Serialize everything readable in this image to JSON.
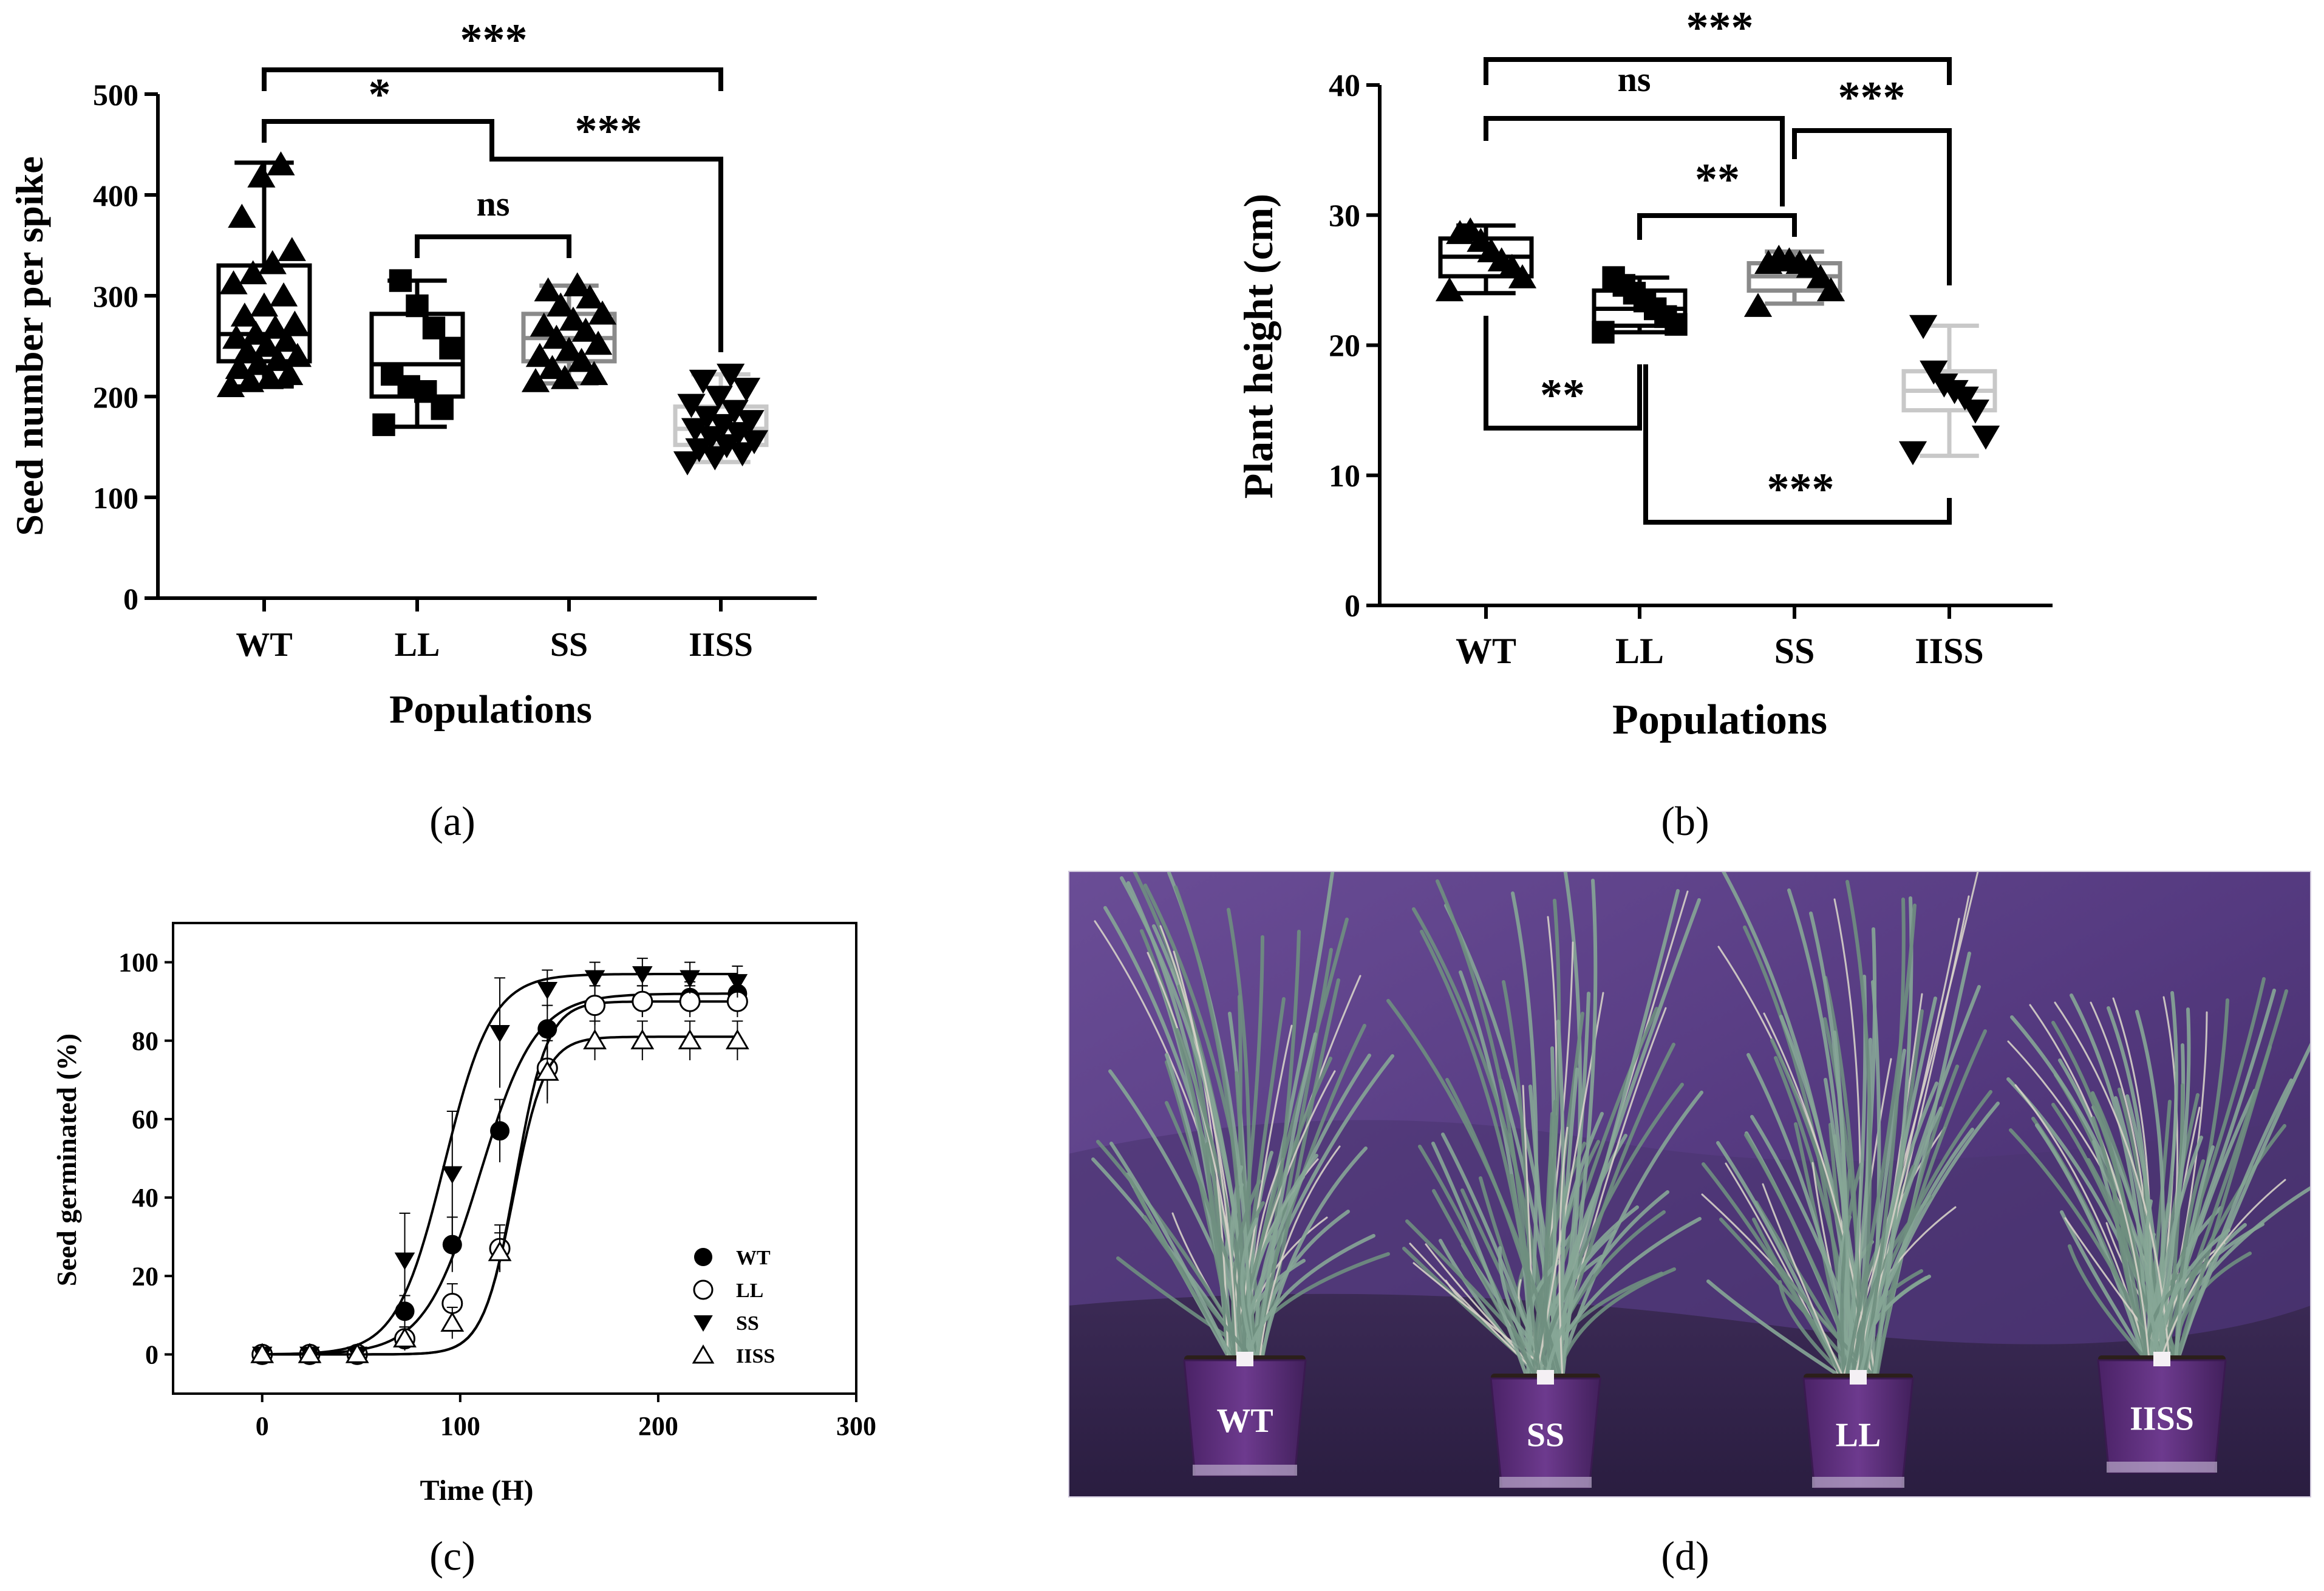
{
  "panels": {
    "a": {
      "caption": "(a)",
      "chart_data": {
        "type": "box",
        "title": "",
        "xlabel": "Populations",
        "ylabel": "Seed number per spike",
        "ylim": [
          0,
          500
        ],
        "yticks": [
          0,
          100,
          200,
          300,
          400,
          500
        ],
        "categories": [
          "WT",
          "LL",
          "SS",
          "IISS"
        ],
        "series": [
          {
            "name": "WT",
            "marker": "triangle-up",
            "box": {
              "min": 210,
              "q1": 235,
              "median": 262,
              "q3": 330,
              "max": 432
            },
            "points": [
              210,
              215,
              218,
              222,
              228,
              232,
              236,
              240,
              245,
              250,
              255,
              258,
              262,
              268,
              272,
              280,
              290,
              300,
              312,
              322,
              332,
              345,
              378,
              418,
              430
            ]
          },
          {
            "name": "LL",
            "marker": "square",
            "box": {
              "min": 170,
              "q1": 200,
              "median": 232,
              "q3": 282,
              "max": 315
            },
            "points": [
              172,
              188,
              205,
              210,
              222,
              248,
              268,
              290,
              315
            ]
          },
          {
            "name": "SS",
            "marker": "triangle-up",
            "box": {
              "min": 213,
              "q1": 235,
              "median": 258,
              "q3": 282,
              "max": 310
            },
            "points": [
              215,
              218,
              222,
              228,
              235,
              240,
              246,
              252,
              258,
              265,
              270,
              276,
              282,
              290,
              298,
              305,
              310
            ]
          },
          {
            "name": "IISS",
            "marker": "triangle-down",
            "box": {
              "min": 135,
              "q1": 152,
              "median": 168,
              "q3": 190,
              "max": 222
            },
            "points": [
              135,
              140,
              144,
              148,
              152,
              156,
              160,
              164,
              168,
              172,
              176,
              180,
              186,
              192,
              200,
              208,
              216,
              222
            ]
          }
        ],
        "comparisons": [
          {
            "from": "WT",
            "to": "IISS",
            "label": "***"
          },
          {
            "from": "WT",
            "to": "SS",
            "label": "*"
          },
          {
            "from": "LL",
            "to": "SS",
            "label": "ns"
          },
          {
            "from": "SS",
            "to": "IISS",
            "label": "***"
          }
        ]
      }
    },
    "b": {
      "caption": "(b)",
      "chart_data": {
        "type": "box",
        "title": "",
        "xlabel": "Populations",
        "ylabel": "Plant height (cm)",
        "ylim": [
          0,
          40
        ],
        "yticks": [
          0,
          10,
          20,
          30,
          40
        ],
        "categories": [
          "WT",
          "LL",
          "SS",
          "IISS"
        ],
        "series": [
          {
            "name": "WT",
            "marker": "triangle-up",
            "box": {
              "min": 24.0,
              "q1": 25.3,
              "median": 26.8,
              "q3": 28.2,
              "max": 29.2
            },
            "points": [
              24.2,
              25.2,
              26.0,
              26.5,
              27.2,
              28.0,
              28.8,
              28.6
            ]
          },
          {
            "name": "LL",
            "marker": "square",
            "box": {
              "min": 21.0,
              "q1": 21.5,
              "median": 22.8,
              "q3": 24.2,
              "max": 25.2
            },
            "points": [
              21.0,
              21.6,
              22.2,
              22.8,
              23.4,
              24.0,
              24.6,
              25.2
            ]
          },
          {
            "name": "SS",
            "marker": "triangle-up",
            "box": {
              "min": 23.2,
              "q1": 24.2,
              "median": 25.3,
              "q3": 26.3,
              "max": 27.2
            },
            "points": [
              23.0,
              24.2,
              25.2,
              26.0,
              26.3,
              26.5,
              26.7,
              26.3
            ]
          },
          {
            "name": "IISS",
            "marker": "triangle-down",
            "box": {
              "min": 11.5,
              "q1": 15.0,
              "median": 16.5,
              "q3": 18.0,
              "max": 21.5
            },
            "points": [
              11.8,
              13.0,
              15.0,
              16.0,
              16.5,
              17.0,
              18.0,
              21.5
            ]
          }
        ],
        "comparisons": [
          {
            "from": "WT",
            "to": "IISS",
            "label": "***"
          },
          {
            "from": "WT",
            "to": "SS",
            "label": "ns"
          },
          {
            "from": "LL",
            "to": "SS",
            "label": "**"
          },
          {
            "from": "SS",
            "to": "IISS",
            "label": "***"
          },
          {
            "from": "WT",
            "to": "LL",
            "label": "**"
          },
          {
            "from": "LL",
            "to": "IISS",
            "label": "***"
          }
        ]
      }
    },
    "c": {
      "caption": "(c)",
      "chart_data": {
        "type": "line",
        "title": "",
        "xlabel": "Time (H)",
        "ylabel": "Seed germinated (%)",
        "xlim": [
          -45,
          300
        ],
        "ylim": [
          -10,
          110
        ],
        "xticks": [
          0,
          100,
          200,
          300
        ],
        "yticks": [
          0,
          20,
          40,
          60,
          80,
          100
        ],
        "x": [
          0,
          24,
          48,
          72,
          96,
          120,
          144,
          168,
          192,
          216,
          240
        ],
        "series": [
          {
            "name": "WT",
            "marker": "circle-filled",
            "values": [
              0,
              0,
              0,
              11,
              28,
              57,
              83,
              89,
              90,
              91,
              92
            ],
            "errors": [
              1,
              1,
              1,
              4,
              7,
              8,
              6,
              5,
              4,
              4,
              4
            ],
            "fit": {
              "asymptote": 92,
              "mid": 110,
              "slope": 14
            }
          },
          {
            "name": "LL",
            "marker": "circle-open",
            "values": [
              0,
              0,
              0,
              4,
              13,
              27,
              73,
              89,
              90,
              90,
              90
            ],
            "errors": [
              1,
              1,
              1,
              3,
              5,
              6,
              8,
              5,
              4,
              4,
              4
            ],
            "fit": {
              "asymptote": 90,
              "mid": 128,
              "slope": 8
            }
          },
          {
            "name": "SS",
            "marker": "triangle-down-filled",
            "values": [
              0,
              0,
              0,
              24,
              46,
              82,
              93,
              96,
              97,
              96,
              95
            ],
            "errors": [
              1,
              1,
              1,
              12,
              16,
              14,
              5,
              4,
              4,
              4,
              4
            ],
            "fit": {
              "asymptote": 97,
              "mid": 92,
              "slope": 12
            }
          },
          {
            "name": "IISS",
            "marker": "triangle-up-open",
            "values": [
              0,
              0,
              0,
              4,
              8,
              26,
              72,
              80,
              80,
              80,
              80
            ],
            "errors": [
              1,
              1,
              1,
              3,
              4,
              5,
              8,
              5,
              5,
              5,
              5
            ],
            "fit": {
              "asymptote": 81,
              "mid": 127,
              "slope": 8
            }
          }
        ],
        "legend": [
          "WT",
          "LL",
          "SS",
          "IISS"
        ],
        "legend_position": "right"
      }
    },
    "d": {
      "caption": "(d)",
      "pot_labels": [
        "WT",
        "SS",
        "LL",
        "IISS"
      ],
      "colors": {
        "backdrop": "#5b3f86",
        "pot": "#5a2f7a",
        "plant": "#8aa89a"
      }
    }
  }
}
